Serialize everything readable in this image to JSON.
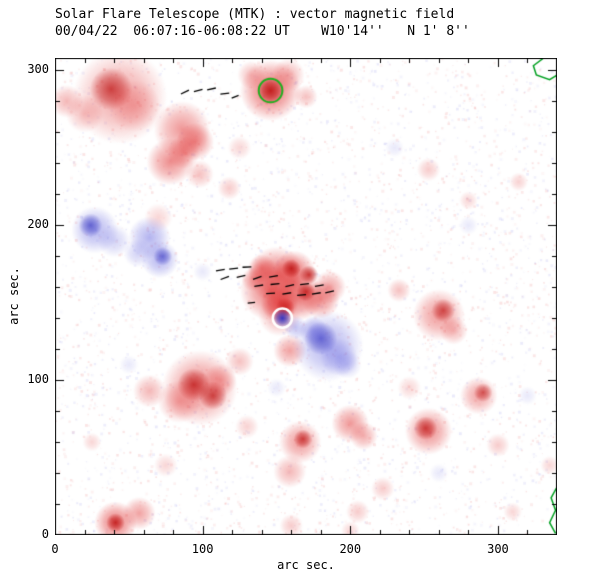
{
  "chart_data": {
    "type": "heatmap",
    "title": "Solar Flare Telescope (MTK) : vector magnetic field",
    "subtitle": "00/04/22  06:07:16-06:08:22 UT    W10'14''   N 1' 8''",
    "xlabel": "arc sec.",
    "ylabel": "arc sec.",
    "xlim": [
      0,
      340
    ],
    "ylim": [
      0,
      308
    ],
    "xticks": [
      0,
      100,
      200,
      300
    ],
    "yticks": [
      0,
      100,
      200,
      300
    ],
    "minor_tick_step": 20,
    "grid": false,
    "legend": "none",
    "colors": {
      "positive": "#e03030",
      "positive_core": "#c01818",
      "negative": "#6868e0",
      "negative_core": "#3030c0",
      "vector": "#000000",
      "contour": "#00a020",
      "annotation_green": "#22b022",
      "annotation_white": "#ffffff",
      "frame": "#000000",
      "background": "#ffffff"
    },
    "blob_format": "[x_arcsec, y_arcsec, radius_arcsec, polarity(p=positive/red, n=negative/blue), alpha, dark_core(0/1)]",
    "blobs": [
      [
        44,
        283,
        20,
        "p",
        0.45,
        0
      ],
      [
        38,
        288,
        9,
        "p",
        0.75,
        1
      ],
      [
        54,
        277,
        11,
        "p",
        0.3,
        0
      ],
      [
        20,
        272,
        8,
        "p",
        0.3,
        0
      ],
      [
        8,
        280,
        7,
        "p",
        0.35,
        0
      ],
      [
        86,
        262,
        12,
        "p",
        0.5,
        0
      ],
      [
        95,
        254,
        8,
        "p",
        0.55,
        0
      ],
      [
        78,
        241,
        10,
        "p",
        0.55,
        0
      ],
      [
        87,
        247,
        7,
        "p",
        0.45,
        0
      ],
      [
        98,
        233,
        6,
        "p",
        0.3,
        0
      ],
      [
        146,
        287,
        13,
        "p",
        0.7,
        0
      ],
      [
        146,
        287,
        6,
        "p",
        0.9,
        1
      ],
      [
        158,
        297,
        7,
        "p",
        0.35,
        0
      ],
      [
        133,
        297,
        6,
        "p",
        0.3,
        0
      ],
      [
        170,
        283,
        5,
        "p",
        0.3,
        0
      ],
      [
        118,
        224,
        5,
        "p",
        0.25,
        0
      ],
      [
        150,
        168,
        12,
        "p",
        0.6,
        0
      ],
      [
        162,
        170,
        9,
        "p",
        0.65,
        0
      ],
      [
        160,
        172,
        4,
        "p",
        0.9,
        1
      ],
      [
        172,
        168,
        4,
        "p",
        0.85,
        1
      ],
      [
        146,
        158,
        13,
        "p",
        0.65,
        0
      ],
      [
        152,
        150,
        8,
        "p",
        0.75,
        0
      ],
      [
        156,
        147,
        4,
        "p",
        0.9,
        1
      ],
      [
        166,
        154,
        10,
        "p",
        0.7,
        0
      ],
      [
        170,
        157,
        4,
        "p",
        0.85,
        1
      ],
      [
        180,
        152,
        8,
        "p",
        0.55,
        0
      ],
      [
        186,
        160,
        7,
        "p",
        0.45,
        0
      ],
      [
        140,
        172,
        6,
        "p",
        0.5,
        0
      ],
      [
        134,
        165,
        5,
        "p",
        0.35,
        0
      ],
      [
        152,
        142,
        9,
        "p",
        0.4,
        0
      ],
      [
        233,
        158,
        5,
        "p",
        0.3,
        0
      ],
      [
        260,
        142,
        11,
        "p",
        0.5,
        0
      ],
      [
        263,
        145,
        5,
        "p",
        0.7,
        1
      ],
      [
        270,
        132,
        6,
        "p",
        0.35,
        0
      ],
      [
        159,
        119,
        7,
        "p",
        0.45,
        0
      ],
      [
        125,
        112,
        6,
        "p",
        0.3,
        0
      ],
      [
        98,
        95,
        16,
        "p",
        0.55,
        0
      ],
      [
        94,
        97,
        7,
        "p",
        0.8,
        1
      ],
      [
        107,
        90,
        6,
        "p",
        0.75,
        1
      ],
      [
        84,
        86,
        9,
        "p",
        0.4,
        0
      ],
      [
        112,
        100,
        7,
        "p",
        0.4,
        0
      ],
      [
        64,
        93,
        7,
        "p",
        0.35,
        0
      ],
      [
        166,
        60,
        9,
        "p",
        0.5,
        0
      ],
      [
        168,
        62,
        4,
        "p",
        0.75,
        1
      ],
      [
        200,
        72,
        8,
        "p",
        0.5,
        0
      ],
      [
        209,
        64,
        6,
        "p",
        0.4,
        0
      ],
      [
        253,
        67,
        10,
        "p",
        0.55,
        0
      ],
      [
        251,
        69,
        5,
        "p",
        0.75,
        1
      ],
      [
        287,
        90,
        8,
        "p",
        0.45,
        0
      ],
      [
        290,
        92,
        4,
        "p",
        0.65,
        1
      ],
      [
        41,
        8,
        9,
        "p",
        0.65,
        0
      ],
      [
        41,
        8,
        4,
        "p",
        0.85,
        1
      ],
      [
        57,
        14,
        7,
        "p",
        0.45,
        0
      ],
      [
        159,
        41,
        7,
        "p",
        0.35,
        0
      ],
      [
        160,
        6,
        5,
        "p",
        0.25,
        0
      ],
      [
        200,
        3,
        4,
        "p",
        0.2,
        0
      ],
      [
        222,
        30,
        5,
        "p",
        0.25,
        0
      ],
      [
        300,
        58,
        5,
        "p",
        0.25,
        0
      ],
      [
        253,
        236,
        5,
        "p",
        0.25,
        0
      ],
      [
        280,
        216,
        4,
        "p",
        0.2,
        0
      ],
      [
        314,
        228,
        4,
        "p",
        0.22,
        0
      ],
      [
        70,
        205,
        6,
        "p",
        0.2,
        0
      ],
      [
        125,
        250,
        5,
        "p",
        0.2,
        0
      ],
      [
        240,
        95,
        5,
        "p",
        0.2,
        0
      ],
      [
        130,
        70,
        5,
        "p",
        0.22,
        0
      ],
      [
        75,
        45,
        5,
        "p",
        0.2,
        0
      ],
      [
        25,
        60,
        4,
        "p",
        0.2,
        0
      ],
      [
        205,
        15,
        5,
        "p",
        0.25,
        0
      ],
      [
        310,
        15,
        4,
        "p",
        0.2,
        0
      ],
      [
        335,
        45,
        4,
        "p",
        0.2,
        0
      ],
      [
        27,
        197,
        10,
        "n",
        0.5,
        0
      ],
      [
        24,
        200,
        5,
        "n",
        0.65,
        1
      ],
      [
        40,
        190,
        7,
        "n",
        0.3,
        0
      ],
      [
        64,
        192,
        9,
        "n",
        0.5,
        0
      ],
      [
        71,
        178,
        8,
        "n",
        0.5,
        0
      ],
      [
        73,
        180,
        4,
        "n",
        0.6,
        1
      ],
      [
        56,
        182,
        6,
        "n",
        0.3,
        0
      ],
      [
        185,
        122,
        15,
        "n",
        0.5,
        0
      ],
      [
        180,
        127,
        7,
        "n",
        0.65,
        1
      ],
      [
        192,
        115,
        8,
        "n",
        0.4,
        0
      ],
      [
        175,
        132,
        6,
        "n",
        0.45,
        0
      ],
      [
        198,
        110,
        6,
        "n",
        0.3,
        0
      ],
      [
        163,
        134,
        5,
        "n",
        0.4,
        0
      ],
      [
        154,
        140,
        4,
        "n",
        0.95,
        1
      ],
      [
        230,
        250,
        4,
        "n",
        0.15,
        0
      ],
      [
        100,
        170,
        4,
        "n",
        0.15,
        0
      ],
      [
        280,
        200,
        4,
        "n",
        0.15,
        0
      ],
      [
        50,
        110,
        4,
        "n",
        0.15,
        0
      ],
      [
        150,
        95,
        4,
        "n",
        0.15,
        0
      ],
      [
        260,
        40,
        4,
        "n",
        0.15,
        0
      ],
      [
        320,
        90,
        4,
        "n",
        0.15,
        0
      ]
    ],
    "vector_format": "[x_arcsec, y_arcsec, angle_deg_ccw, length_arcsec]",
    "vectors": [
      [
        88,
        286,
        25,
        6
      ],
      [
        97,
        287,
        15,
        6
      ],
      [
        106,
        288,
        12,
        6
      ],
      [
        115,
        285,
        6,
        6
      ],
      [
        122,
        283,
        20,
        5
      ],
      [
        112,
        171,
        10,
        6
      ],
      [
        121,
        172,
        5,
        6
      ],
      [
        130,
        173,
        2,
        6
      ],
      [
        115,
        166,
        20,
        6
      ],
      [
        126,
        167,
        12,
        6
      ],
      [
        137,
        166,
        18,
        6
      ],
      [
        148,
        167,
        10,
        6
      ],
      [
        138,
        161,
        8,
        6
      ],
      [
        149,
        162,
        5,
        6
      ],
      [
        159,
        161,
        12,
        6
      ],
      [
        169,
        162,
        6,
        6
      ],
      [
        179,
        161,
        10,
        6
      ],
      [
        146,
        156,
        4,
        6
      ],
      [
        157,
        156,
        8,
        6
      ],
      [
        167,
        155,
        4,
        6
      ],
      [
        177,
        156,
        8,
        6
      ],
      [
        186,
        157,
        12,
        6
      ],
      [
        133,
        150,
        6,
        5
      ]
    ],
    "contours": [
      {
        "name": "green-contour-top-right",
        "points": [
          [
            331,
            308
          ],
          [
            324,
            303
          ],
          [
            326,
            297
          ],
          [
            335,
            294
          ],
          [
            340,
            297
          ]
        ]
      },
      {
        "name": "green-contour-right-edge",
        "points": [
          [
            340,
            31
          ],
          [
            336,
            24
          ],
          [
            339,
            16
          ],
          [
            335,
            8
          ],
          [
            339,
            1
          ]
        ]
      }
    ],
    "annotations": [
      {
        "type": "circle",
        "name": "green-circle-marker",
        "x": 146,
        "y": 287,
        "r": 8,
        "color": "#22b022",
        "width": 2
      },
      {
        "type": "circle",
        "name": "white-circle-marker",
        "x": 154,
        "y": 140,
        "r": 6.5,
        "color": "#ffffff",
        "width": 2.5
      }
    ],
    "noise": {
      "count": 4200,
      "seed": 1234,
      "max_alpha": 0.1
    }
  }
}
